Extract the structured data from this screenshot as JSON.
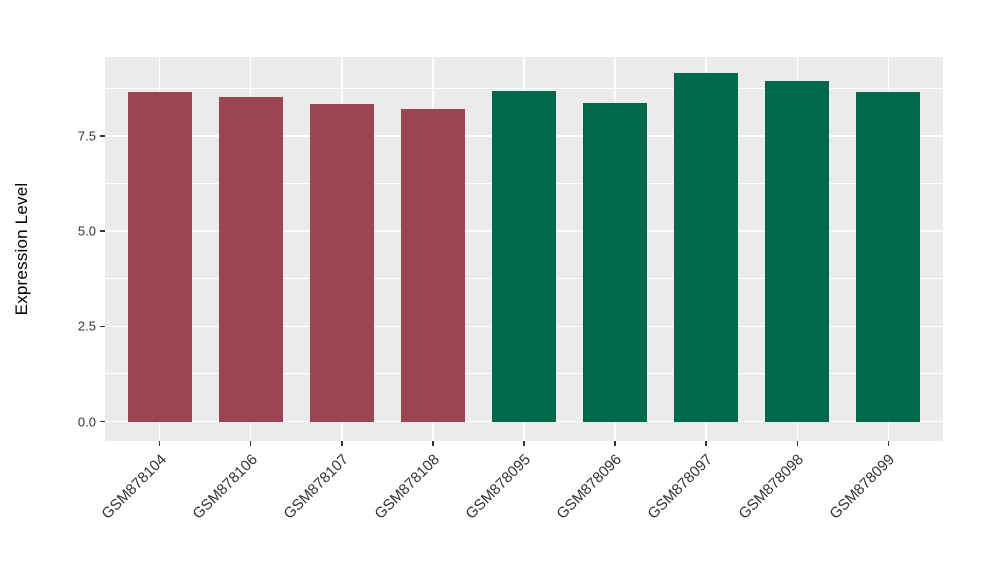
{
  "chart_data": {
    "type": "bar",
    "title": "",
    "xlabel": "",
    "ylabel": "Expression Level",
    "categories": [
      "GSM878104",
      "GSM878106",
      "GSM878107",
      "GSM878108",
      "GSM878095",
      "GSM878096",
      "GSM878097",
      "GSM878098",
      "GSM878099"
    ],
    "values": [
      8.65,
      8.53,
      8.33,
      8.2,
      8.68,
      8.36,
      9.15,
      8.94,
      8.66
    ],
    "bar_colors": [
      "#9C4451",
      "#9C4451",
      "#9C4451",
      "#9C4451",
      "#00684B",
      "#00684B",
      "#00684B",
      "#00684B",
      "#00684B"
    ],
    "groups": [
      {
        "color": "#9C4451",
        "categories": [
          "GSM878104",
          "GSM878106",
          "GSM878107",
          "GSM878108"
        ]
      },
      {
        "color": "#00684B",
        "categories": [
          "GSM878095",
          "GSM878096",
          "GSM878097",
          "GSM878098",
          "GSM878099"
        ]
      }
    ],
    "y_ticks": [
      {
        "label": "0.0",
        "value": 0.0
      },
      {
        "label": "2.5",
        "value": 2.5
      },
      {
        "label": "5.0",
        "value": 5.0
      },
      {
        "label": "7.5",
        "value": 7.5
      }
    ],
    "y_minor_ticks": [
      1.25,
      3.75,
      6.25,
      8.75
    ],
    "ylim": [
      -0.51,
      9.57
    ],
    "bar_rel_width": 0.7,
    "x_expand": 0.6,
    "grid": true,
    "legend": "none",
    "panel_bg": "#EBEBEB",
    "grid_color": "#FFFFFF",
    "tick_color": "#333333",
    "text_color": "#333333"
  }
}
